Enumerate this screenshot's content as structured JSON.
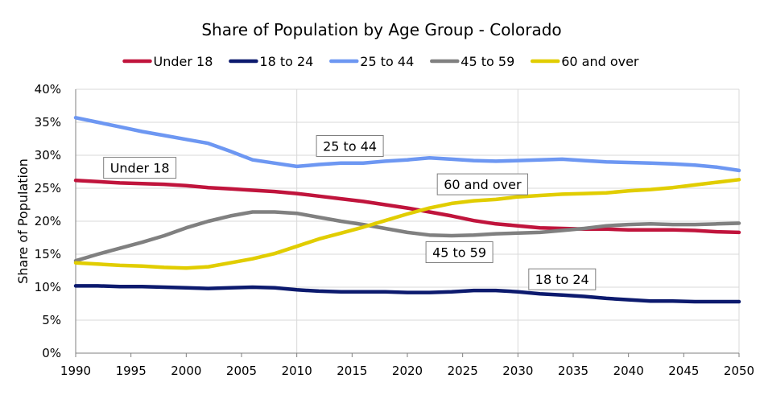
{
  "chart_data": {
    "type": "line",
    "title": "Share of Population by Age Group - Colorado",
    "xlabel": "",
    "ylabel": "Share of Population",
    "xlim": [
      1990,
      2050
    ],
    "ylim": [
      0,
      40
    ],
    "x_ticks": [
      "1990",
      "1995",
      "2000",
      "2005",
      "2010",
      "2015",
      "2020",
      "2025",
      "2030",
      "2035",
      "2040",
      "2045",
      "2050"
    ],
    "y_ticks": [
      "0%",
      "5%",
      "10%",
      "15%",
      "20%",
      "25%",
      "30%",
      "35%",
      "40%"
    ],
    "grid": {
      "horizontal": true,
      "vertical": true
    },
    "legend_position": "top",
    "x": [
      1990,
      1992,
      1994,
      1996,
      1998,
      2000,
      2002,
      2004,
      2006,
      2008,
      2010,
      2012,
      2014,
      2016,
      2018,
      2020,
      2022,
      2024,
      2026,
      2028,
      2030,
      2032,
      2034,
      2036,
      2038,
      2040,
      2042,
      2044,
      2046,
      2048,
      2050
    ],
    "series": [
      {
        "name": "Under 18",
        "color": "#c0143c",
        "values": [
          26.2,
          26.0,
          25.8,
          25.7,
          25.6,
          25.4,
          25.1,
          24.9,
          24.7,
          24.5,
          24.2,
          23.8,
          23.4,
          23.0,
          22.5,
          22.0,
          21.4,
          20.8,
          20.1,
          19.6,
          19.3,
          19.0,
          18.9,
          18.8,
          18.8,
          18.7,
          18.7,
          18.7,
          18.6,
          18.4,
          18.3
        ]
      },
      {
        "name": "18 to 24",
        "color": "#0c1a6e",
        "values": [
          10.2,
          10.2,
          10.1,
          10.1,
          10.0,
          9.9,
          9.8,
          9.9,
          10.0,
          9.9,
          9.6,
          9.4,
          9.3,
          9.3,
          9.3,
          9.2,
          9.2,
          9.3,
          9.5,
          9.5,
          9.3,
          9.0,
          8.8,
          8.6,
          8.3,
          8.1,
          7.9,
          7.9,
          7.8,
          7.8,
          7.8
        ]
      },
      {
        "name": "25 to 44",
        "color": "#6d97f2",
        "values": [
          35.7,
          35.0,
          34.3,
          33.6,
          33.0,
          32.4,
          31.8,
          30.6,
          29.3,
          28.8,
          28.3,
          28.6,
          28.8,
          28.8,
          29.1,
          29.3,
          29.6,
          29.4,
          29.2,
          29.1,
          29.2,
          29.3,
          29.4,
          29.2,
          29.0,
          28.9,
          28.8,
          28.7,
          28.5,
          28.2,
          27.7
        ]
      },
      {
        "name": "45 to 59",
        "color": "#808080",
        "values": [
          14.0,
          15.0,
          15.9,
          16.8,
          17.8,
          19.0,
          20.0,
          20.8,
          21.4,
          21.4,
          21.2,
          20.6,
          20.0,
          19.5,
          18.9,
          18.3,
          17.9,
          17.8,
          17.9,
          18.1,
          18.2,
          18.3,
          18.6,
          18.9,
          19.3,
          19.5,
          19.6,
          19.5,
          19.5,
          19.6,
          19.7
        ]
      },
      {
        "name": "60 and over",
        "color": "#e1cd00",
        "values": [
          13.7,
          13.5,
          13.3,
          13.2,
          13.0,
          12.9,
          13.1,
          13.7,
          14.3,
          15.1,
          16.2,
          17.3,
          18.2,
          19.1,
          20.1,
          21.1,
          22.0,
          22.7,
          23.1,
          23.3,
          23.7,
          23.9,
          24.1,
          24.2,
          24.3,
          24.6,
          24.8,
          25.1,
          25.5,
          25.9,
          26.3
        ]
      }
    ],
    "annotations": [
      {
        "text": "Under 18",
        "x": 1995.8,
        "y": 28.1
      },
      {
        "text": "25 to 44",
        "x": 2014.8,
        "y": 31.4
      },
      {
        "text": "60 and over",
        "x": 2026.8,
        "y": 25.6
      },
      {
        "text": "45 to 59",
        "x": 2024.7,
        "y": 15.3
      },
      {
        "text": "18 to 24",
        "x": 2034.0,
        "y": 11.2
      }
    ]
  }
}
